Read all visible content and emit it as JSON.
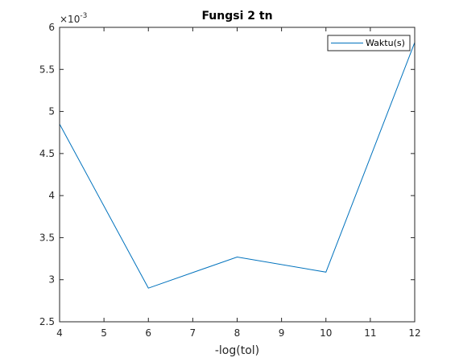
{
  "chart_data": {
    "type": "line",
    "title": "Fungsi 2 tn",
    "xlabel": "-log(tol)",
    "ylabel": "",
    "x": [
      4,
      6,
      8,
      10,
      12
    ],
    "series": [
      {
        "name": "Waktu(s)",
        "values": [
          0.00485,
          0.0029,
          0.00327,
          0.00309,
          0.00582
        ],
        "color": "#0072BD"
      }
    ],
    "xlim": [
      4,
      12
    ],
    "ylim": [
      0.0025,
      0.006
    ],
    "xticks": [
      "4",
      "5",
      "6",
      "7",
      "8",
      "9",
      "10",
      "11",
      "12"
    ],
    "yticks": [
      "2.5",
      "3",
      "3.5",
      "4",
      "4.5",
      "5",
      "5.5",
      "6"
    ],
    "yscale_factor": "×10",
    "yscale_exponent": "-3",
    "legend": "top-right",
    "grid": false
  }
}
